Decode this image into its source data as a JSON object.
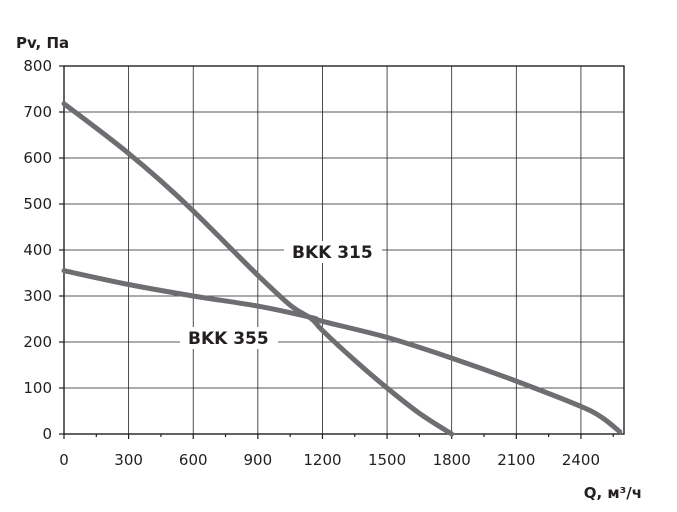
{
  "chart_data": {
    "type": "line",
    "ylabel": "Pv, Па",
    "xlabel": "Q, м³/ч",
    "xlim": [
      0,
      2600
    ],
    "ylim": [
      0,
      800
    ],
    "x_ticks": [
      0,
      300,
      600,
      900,
      1200,
      1500,
      1800,
      2100,
      2400
    ],
    "y_ticks": [
      0,
      100,
      200,
      300,
      400,
      500,
      600,
      700,
      800
    ],
    "grid": true,
    "series": [
      {
        "name": "BKK 315",
        "x": [
          0,
          150,
          300,
          450,
          600,
          750,
          900,
          1050,
          1150,
          1200,
          1350,
          1500,
          1650,
          1800
        ],
        "y": [
          718,
          665,
          610,
          550,
          485,
          415,
          345,
          280,
          250,
          225,
          160,
          100,
          45,
          0
        ]
      },
      {
        "name": "BKK 355",
        "x": [
          0,
          300,
          600,
          900,
          1150,
          1200,
          1500,
          1800,
          2100,
          2400,
          2500,
          2580
        ],
        "y": [
          355,
          325,
          300,
          278,
          253,
          245,
          210,
          165,
          115,
          60,
          35,
          5
        ]
      }
    ],
    "line_color": "#6d6e71"
  }
}
